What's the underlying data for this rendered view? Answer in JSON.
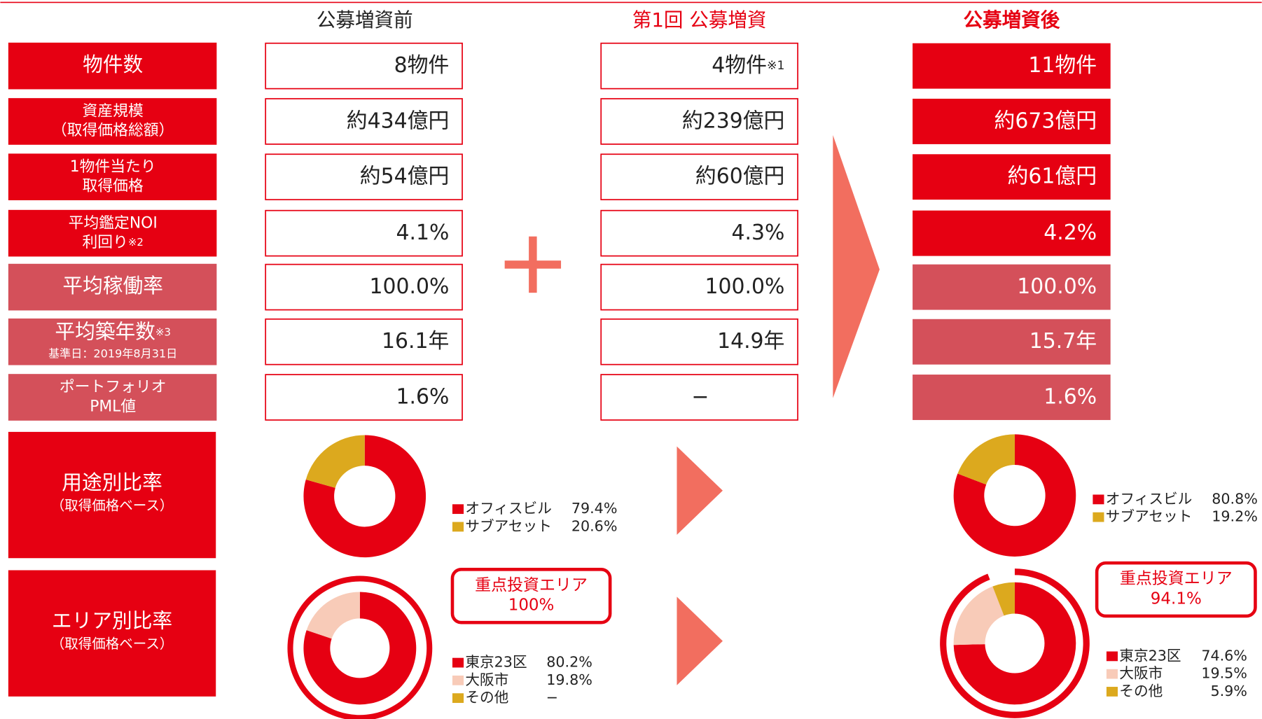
{
  "columns": [
    "公募増資前",
    "第1回 公募増資",
    "公募増資後"
  ],
  "rows": [
    {
      "label": [
        {
          "text": "物件数"
        }
      ],
      "cells": [
        {
          "text": "8物件"
        },
        {
          "text": "4物件",
          "note": "※1"
        },
        {
          "text": "11物件"
        }
      ]
    },
    {
      "label": [
        {
          "text": "資産規模"
        },
        {
          "text": "（取得価格総額）"
        }
      ],
      "cells": [
        {
          "text": "約434億円"
        },
        {
          "text": "約239億円"
        },
        {
          "text": "約673億円"
        }
      ]
    },
    {
      "label": [
        {
          "text": "1物件当たり"
        },
        {
          "text": "取得価格"
        }
      ],
      "cells": [
        {
          "text": "約54億円"
        },
        {
          "text": "約60億円"
        },
        {
          "text": "約61億円"
        }
      ]
    },
    {
      "label": [
        {
          "text": "平均鑑定NOI"
        },
        {
          "text": "利回り",
          "note": "※2"
        }
      ],
      "cells": [
        {
          "text": "4.1%"
        },
        {
          "text": "4.3%"
        },
        {
          "text": "4.2%"
        }
      ]
    },
    {
      "label": [
        {
          "text": "平均稼働率"
        }
      ],
      "cells": [
        {
          "text": "100.0%"
        },
        {
          "text": "100.0%"
        },
        {
          "text": "100.0%"
        }
      ]
    },
    {
      "label": [
        {
          "text": "平均築年数",
          "note": "※3"
        },
        {
          "text": "基準日：2019年8月31日"
        }
      ],
      "cells": [
        {
          "text": "16.1年"
        },
        {
          "text": "14.9年"
        },
        {
          "text": "15.7年"
        }
      ]
    },
    {
      "label": [
        {
          "text": "ポートフォリオ"
        },
        {
          "text": "PML値"
        }
      ],
      "cells": [
        {
          "text": "1.6%"
        },
        {
          "text": "−"
        },
        {
          "text": "1.6%"
        }
      ]
    }
  ],
  "charts": [
    {
      "label": [
        "用途別比率",
        "（取得価格ベース）"
      ],
      "donuts": [
        {
          "type": "donut",
          "categories": [
            "オフィスビル",
            "サブアセット"
          ],
          "values": [
            79.4,
            20.6
          ],
          "value_labels": [
            "79.4%",
            "20.6%"
          ],
          "colors": [
            "#e60012",
            "#dca91e"
          ]
        },
        {
          "type": "donut",
          "categories": [
            "オフィスビル",
            "サブアセット"
          ],
          "values": [
            80.8,
            19.2
          ],
          "value_labels": [
            "80.8%",
            "19.2%"
          ],
          "colors": [
            "#e60012",
            "#dca91e"
          ]
        }
      ]
    },
    {
      "label": [
        "エリア別比率",
        "（取得価格ベース）"
      ],
      "donuts": [
        {
          "type": "donut",
          "categories": [
            "東京23区",
            "大阪市",
            "その他"
          ],
          "values": [
            80.2,
            19.8,
            null
          ],
          "value_labels": [
            "80.2%",
            "19.8%",
            "−"
          ],
          "colors": [
            "#e60012",
            "#f8cbb8",
            "#dca91e"
          ],
          "focus": {
            "label": "重点投資エリア",
            "value": 100,
            "value_label": "100%"
          }
        },
        {
          "type": "donut",
          "categories": [
            "東京23区",
            "大阪市",
            "その他"
          ],
          "values": [
            74.6,
            19.5,
            5.9
          ],
          "value_labels": [
            "74.6%",
            "19.5%",
            "5.9%"
          ],
          "colors": [
            "#e60012",
            "#f8cbb8",
            "#dca91e"
          ],
          "focus": {
            "label": "重点投資エリア",
            "value": 94.1,
            "value_label": "94.1%"
          }
        }
      ]
    }
  ]
}
